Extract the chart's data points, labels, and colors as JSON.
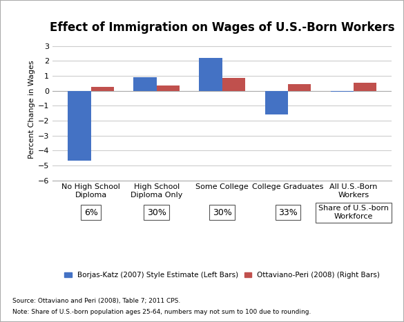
{
  "title": "Effect of Immigration on Wages of U.S.-Born Workers",
  "categories": [
    "No High School\nDiploma",
    "High School\nDiploma Only",
    "Some College",
    "College Graduates",
    "All U.S.-Born\nWorkers"
  ],
  "borjas_katz": [
    -4.7,
    0.9,
    2.2,
    -1.6,
    -0.05
  ],
  "ottaviano_peri": [
    0.25,
    0.35,
    0.85,
    0.45,
    0.55
  ],
  "blue_color": "#4472C4",
  "red_color": "#C0504D",
  "bar_width": 0.35,
  "ylim": [
    -6,
    3.5
  ],
  "yticks": [
    -6,
    -5,
    -4,
    -3,
    -2,
    -1,
    0,
    1,
    2,
    3
  ],
  "ylabel": "Percent Change in Wages",
  "share_labels": [
    "6%",
    "30%",
    "30%",
    "33%"
  ],
  "legend_blue": "Borjas-Katz (2007) Style Estimate (Left Bars)",
  "legend_red": "Ottaviano-Peri (2008) (Right Bars)",
  "source_line1": "Source: Ottaviano and Peri (2008), Table 7; 2011 CPS.",
  "source_line2": "Note: Share of U.S.-born population ages 25-64, numbers may not sum to 100 due to rounding.",
  "share_box_label": "Share of U.S.-born\nWorkforce",
  "background_color": "#FFFFFF",
  "grid_color": "#CCCCCC",
  "border_color": "#AAAAAA"
}
